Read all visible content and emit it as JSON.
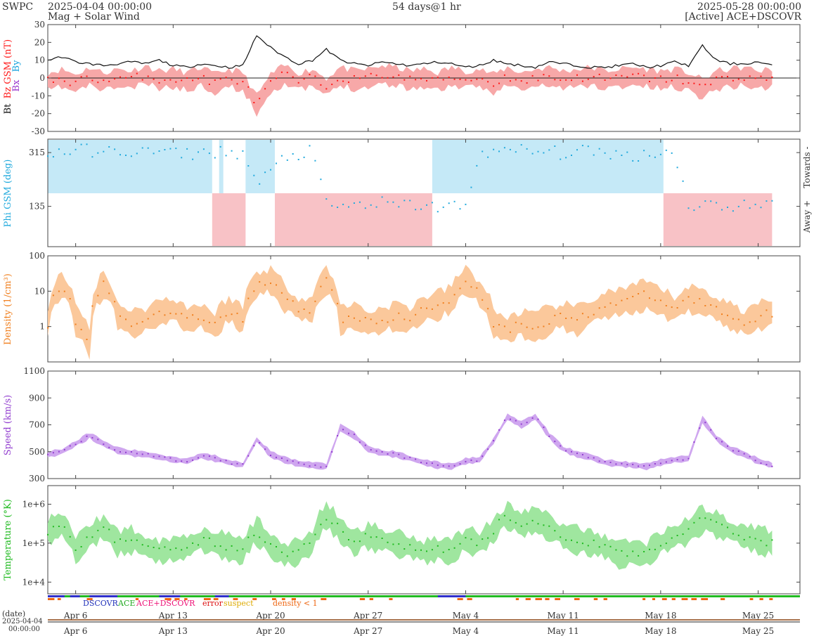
{
  "header": {
    "org": "SWPC",
    "start": "2025-04-04 00:00:00",
    "subtitle": "Mag + Solar Wind",
    "span": "54 days@1 hr",
    "end": "2025-05-28 00:00:00",
    "source": "[Active] ACE+DSCOVR"
  },
  "colors": {
    "bt": "#111111",
    "bz": "#ff1a1a",
    "bz_band": "#f7a8a8",
    "bx": "#9933cc",
    "by": "#1aa3dd",
    "phi": "#22aadd",
    "towards_band": "#c5e9f7",
    "away_band": "#f8c2c6",
    "density": "#f08020",
    "density_band": "#fbc89b",
    "speed": "#9340d0",
    "speed_band": "#cfa6ef",
    "temperature": "#1fba1f",
    "temperature_band": "#9fe69f"
  },
  "chart_data": [
    {
      "type": "line",
      "panel": "mag",
      "ylabel_parts": [
        "Bt",
        "Bz GSM (nT)",
        "Bx",
        "By"
      ],
      "ylim": [
        -30,
        30
      ],
      "yticks": [
        "30",
        "20",
        "10",
        "0",
        "-10",
        "-20",
        "-30"
      ],
      "x_start": "2025-04-04 00:00:00",
      "x_end": "2025-05-28 00:00:00",
      "x_unit": "days",
      "x": [
        0,
        1,
        2,
        3,
        4,
        5,
        6,
        7,
        8,
        9,
        10,
        11,
        12,
        13,
        14,
        15,
        16,
        17,
        18,
        19,
        20,
        21,
        22,
        23,
        24,
        25,
        26,
        27,
        28,
        29,
        30,
        31,
        32,
        33,
        34,
        35,
        36,
        37,
        38,
        39,
        40,
        41,
        42,
        43,
        44,
        45,
        46,
        47,
        48,
        49,
        50,
        51,
        52,
        53
      ],
      "series": [
        {
          "name": "Bt",
          "values": [
            10,
            12,
            9,
            8,
            7,
            8,
            9,
            8,
            10,
            7,
            6,
            8,
            7,
            6,
            7,
            24,
            17,
            12,
            8,
            10,
            16,
            10,
            8,
            7,
            9,
            8,
            7,
            8,
            9,
            8,
            6,
            7,
            10,
            8,
            7,
            6,
            9,
            8,
            7,
            6,
            6,
            7,
            8,
            6,
            7,
            9,
            7,
            18,
            10,
            8,
            8,
            9,
            7,
            8
          ]
        },
        {
          "name": "Bz",
          "values": [
            -2,
            0,
            -3,
            1,
            -2,
            0,
            -1,
            2,
            -1,
            0,
            -2,
            1,
            -3,
            0,
            -2,
            -15,
            -3,
            2,
            -2,
            0,
            -5,
            1,
            -1,
            0,
            2,
            1,
            -1,
            0,
            -2,
            1,
            -1,
            0,
            -3,
            1,
            -2,
            0,
            1,
            -1,
            0,
            1,
            -1,
            0,
            1,
            0,
            -1,
            0,
            -2,
            -6,
            -1,
            0,
            1,
            -1,
            0,
            1
          ]
        }
      ]
    },
    {
      "type": "scatter",
      "panel": "phi",
      "ylabel": "Phi GSM (deg)",
      "yticks": [
        "315",
        "135"
      ],
      "side_labels": [
        "Towards -",
        "Away +"
      ],
      "x": [
        0,
        1,
        2,
        3,
        4,
        5,
        6,
        7,
        8,
        9,
        10,
        11,
        12,
        13,
        14,
        15,
        16,
        17,
        18,
        19,
        20,
        21,
        22,
        23,
        24,
        25,
        26,
        27,
        28,
        29,
        30,
        31,
        32,
        33,
        34,
        35,
        36,
        37,
        38,
        39,
        40,
        41,
        42,
        43,
        44,
        45,
        46,
        47,
        48,
        49,
        50,
        51,
        52,
        53
      ],
      "series": [
        {
          "name": "Phi",
          "values": [
            310,
            320,
            318,
            325,
            312,
            322,
            318,
            316,
            320,
            312,
            310,
            315,
            318,
            312,
            316,
            205,
            250,
            300,
            310,
            318,
            140,
            132,
            138,
            142,
            145,
            135,
            140,
            138,
            132,
            135,
            130,
            318,
            320,
            312,
            325,
            316,
            318,
            312,
            320,
            315,
            318,
            310,
            300,
            316,
            312,
            318,
            140,
            138,
            145,
            132,
            140,
            136,
            138,
            134
          ]
        }
      ]
    },
    {
      "type": "line",
      "panel": "density",
      "scale": "log",
      "ylabel": "Density (1/cm³)",
      "ylim": [
        0.1,
        100
      ],
      "yticks": [
        "100",
        "10",
        "1"
      ],
      "x": [
        0,
        1,
        2,
        3,
        4,
        5,
        6,
        7,
        8,
        9,
        10,
        11,
        12,
        13,
        14,
        15,
        16,
        17,
        18,
        19,
        20,
        21,
        22,
        23,
        24,
        25,
        26,
        27,
        28,
        29,
        30,
        31,
        32,
        33,
        34,
        35,
        36,
        37,
        38,
        39,
        40,
        41,
        42,
        43,
        44,
        45,
        46,
        47,
        48,
        49,
        50,
        51,
        52,
        53
      ],
      "series": [
        {
          "name": "Density",
          "values": [
            1.2,
            15,
            1.5,
            0.3,
            15,
            2,
            1.2,
            1.5,
            2.5,
            3,
            1.5,
            2,
            1,
            3,
            1.5,
            15,
            20,
            6,
            3,
            3,
            20,
            1.5,
            2,
            1.2,
            1.5,
            2,
            1.5,
            3,
            4,
            6,
            20,
            8,
            1.2,
            0.8,
            1.2,
            1,
            1.5,
            2,
            1.5,
            2.5,
            4,
            5,
            6,
            8,
            5,
            3,
            6,
            5,
            3,
            2,
            1.2,
            2,
            2.5,
            3
          ]
        }
      ]
    },
    {
      "type": "line",
      "panel": "speed",
      "ylabel": "Speed (km/s)",
      "ylim": [
        300,
        1100
      ],
      "yticks": [
        "1100",
        "900",
        "700",
        "500",
        "300"
      ],
      "x": [
        0,
        1,
        2,
        3,
        4,
        5,
        6,
        7,
        8,
        9,
        10,
        11,
        12,
        13,
        14,
        15,
        16,
        17,
        18,
        19,
        20,
        21,
        22,
        23,
        24,
        25,
        26,
        27,
        28,
        29,
        30,
        31,
        32,
        33,
        34,
        35,
        36,
        37,
        38,
        39,
        40,
        41,
        42,
        43,
        44,
        45,
        46,
        47,
        48,
        49,
        50,
        51,
        52,
        53
      ],
      "series": [
        {
          "name": "Speed",
          "values": [
            480,
            500,
            560,
            620,
            560,
            510,
            490,
            480,
            460,
            440,
            430,
            470,
            450,
            420,
            400,
            590,
            480,
            440,
            410,
            400,
            390,
            680,
            620,
            520,
            490,
            480,
            450,
            420,
            400,
            390,
            430,
            440,
            580,
            760,
            700,
            760,
            620,
            520,
            480,
            460,
            420,
            410,
            400,
            390,
            420,
            440,
            450,
            740,
            600,
            520,
            480,
            430,
            400,
            420
          ]
        }
      ]
    },
    {
      "type": "line",
      "panel": "temperature",
      "scale": "log",
      "ylabel": "Temperature (°K)",
      "ylim": [
        5000,
        3000000
      ],
      "yticks": [
        "1e+6",
        "1e+5",
        "1e+4"
      ],
      "x": [
        0,
        1,
        2,
        3,
        4,
        5,
        6,
        7,
        8,
        9,
        10,
        11,
        12,
        13,
        14,
        15,
        16,
        17,
        18,
        19,
        20,
        21,
        22,
        23,
        24,
        25,
        26,
        27,
        28,
        29,
        30,
        31,
        32,
        33,
        34,
        35,
        36,
        37,
        38,
        39,
        40,
        41,
        42,
        43,
        44,
        45,
        46,
        47,
        48,
        49,
        50,
        51,
        52,
        53
      ],
      "series": [
        {
          "name": "Temperature",
          "values": [
            200000,
            300000,
            60000,
            150000,
            250000,
            100000,
            120000,
            80000,
            60000,
            70000,
            80000,
            120000,
            100000,
            80000,
            60000,
            200000,
            80000,
            50000,
            60000,
            100000,
            500000,
            200000,
            100000,
            150000,
            120000,
            100000,
            80000,
            60000,
            70000,
            60000,
            120000,
            100000,
            200000,
            500000,
            300000,
            400000,
            250000,
            150000,
            120000,
            100000,
            80000,
            50000,
            60000,
            50000,
            100000,
            150000,
            200000,
            400000,
            300000,
            200000,
            150000,
            120000,
            100000,
            80000
          ]
        }
      ]
    }
  ],
  "legend": {
    "dscovr": "DSCOVR",
    "ace": "ACE",
    "both": "ACE+DSCOVR",
    "error": "error",
    "suspect": "suspect",
    "density_lt1": "density < 1"
  },
  "xaxis": {
    "tick_labels": [
      "Apr 6",
      "Apr 13",
      "Apr 20",
      "Apr 27",
      "May 4",
      "May 11",
      "May 18",
      "May 25"
    ],
    "tick_days": [
      2,
      9,
      16,
      23,
      30,
      37,
      44,
      51
    ],
    "date_label": "(date)",
    "date_start_line1": "2025-04-04",
    "date_start_line2": "00:00:00"
  }
}
